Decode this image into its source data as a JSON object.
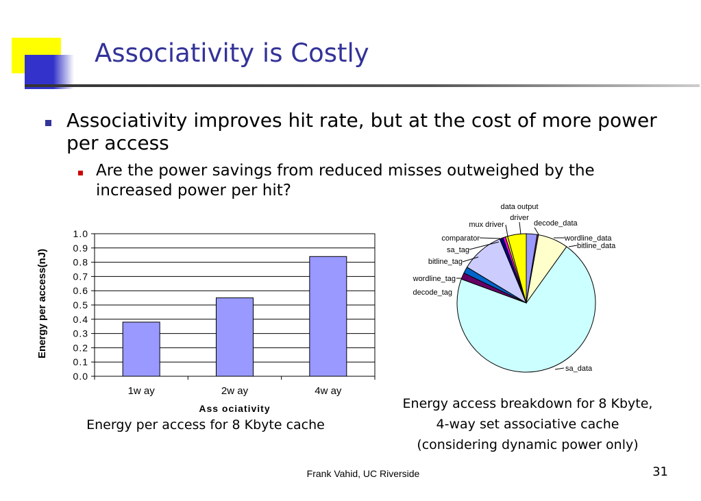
{
  "slide": {
    "title": "Associativity is Costly",
    "bullets": [
      "Associativity improves hit rate, but at the cost of more power per access",
      "Are the power savings from reduced misses outweighed by the increased power per hit?"
    ],
    "bar_caption": "Energy per access for 8 Kbyte cache",
    "pie_caption": [
      "Energy access breakdown for 8 Kbyte,",
      "4-way set associative cache",
      "(considering dynamic power only)"
    ],
    "footer": "Frank Vahid, UC Riverside",
    "page_number": "31",
    "colors": {
      "title": "#333399",
      "bullet_l1": "#333399",
      "bullet_l2": "#cc0000",
      "bar_fill": "#9999ff"
    }
  },
  "chart_data": [
    {
      "type": "bar",
      "categories": [
        "1w ay",
        "2w ay",
        "4w ay"
      ],
      "values": [
        0.38,
        0.55,
        0.84
      ],
      "xlabel": "Ass ociativity",
      "ylabel": "Energy per access(nJ)",
      "ylim": [
        0,
        1.0
      ],
      "yticks": [
        "0.0",
        "0.1",
        "0.2",
        "0.3",
        "0.4",
        "0.5",
        "0.6",
        "0.7",
        "0.8",
        "0.9",
        "1.0"
      ],
      "grid": true
    },
    {
      "type": "pie",
      "slices": [
        {
          "label": "decode_data",
          "value": 2.5,
          "color": "#9999ff"
        },
        {
          "label": "wordline_data",
          "value": 0.3,
          "color": "#993366"
        },
        {
          "label": "bitline_data",
          "value": 7.0,
          "color": "#ffffcc"
        },
        {
          "label": "sa_data",
          "value": 70.0,
          "color": "#ccffff"
        },
        {
          "label": "decode_tag",
          "value": 1.5,
          "color": "#660066"
        },
        {
          "label": "wordline_tag",
          "value": 1.5,
          "color": "#0066cc"
        },
        {
          "label": "bitline_tag",
          "value": 10.0,
          "color": "#ccccff"
        },
        {
          "label": "sa_tag",
          "value": 0.8,
          "color": "#000080"
        },
        {
          "label": "comparator",
          "value": 0.6,
          "color": "#ff00ff"
        },
        {
          "label": "mux driver",
          "value": 0.5,
          "color": "#ffff00"
        },
        {
          "label": "data output driver",
          "value": 4.3,
          "color": "#ffff00"
        }
      ],
      "label_texts": {
        "data_output_line1": "data output",
        "data_output_line2": "driver",
        "mux": "mux driver",
        "decode_data": "decode_data",
        "comparator": "comparator",
        "wordline_data": "wordline_data",
        "sa_tag": "sa_tag",
        "bitline_data": "bitline_data",
        "bitline_tag": "bitline_tag",
        "wordline_tag": "wordline_tag",
        "decode_tag": "decode_tag",
        "sa_data": "sa_data"
      }
    }
  ]
}
